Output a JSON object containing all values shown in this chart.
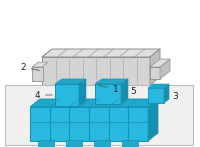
{
  "bg_color": "#ffffff",
  "part_color": "#29b8e0",
  "part_color_mid": "#1fa8cc",
  "part_color_dark": "#1590b0",
  "grey_face": "#d4d4d4",
  "grey_side": "#c0c0c0",
  "grey_top": "#e0e0e0",
  "grey_edge": "#909090",
  "border_fill": "#f0f0f0",
  "border_edge": "#bbbbbb",
  "label_color": "#222222",
  "line_color": "#555555"
}
